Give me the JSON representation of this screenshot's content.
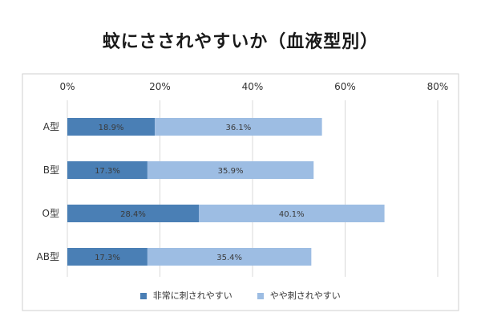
{
  "title": "蚊にさされやすいか（血液型別）",
  "colors": {
    "series1": "#4a7fb5",
    "series2": "#9dbde3",
    "grid": "#d9d9d9",
    "label": "#333333",
    "bar_label": "#3a3a3a"
  },
  "chart_data": {
    "type": "bar",
    "orientation": "horizontal",
    "stacked": true,
    "title": "蚊にさされやすいか（血液型別）",
    "categories": [
      "A型",
      "B型",
      "O型",
      "AB型"
    ],
    "series": [
      {
        "name": "非常に刺されやすい",
        "values": [
          18.9,
          17.3,
          28.4,
          17.3
        ],
        "labels": [
          "18.9%",
          "17.3%",
          "28.4%",
          "17.3%"
        ]
      },
      {
        "name": "やや刺されやすい",
        "values": [
          36.1,
          35.9,
          40.1,
          35.4
        ],
        "labels": [
          "36.1%",
          "35.9%",
          "40.1%",
          "35.4%"
        ]
      }
    ],
    "xlim": [
      0,
      80
    ],
    "xticks": [
      0,
      20,
      40,
      60,
      80
    ],
    "xtick_labels": [
      "0%",
      "20%",
      "40%",
      "60%",
      "80%"
    ],
    "x_axis_position": "top",
    "grid": true,
    "legend_position": "bottom"
  }
}
